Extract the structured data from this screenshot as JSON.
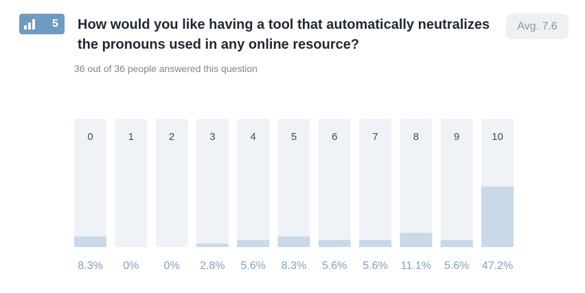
{
  "question": {
    "number": "5",
    "title": "How would you like having a tool that automatically neutralizes the pronouns used in any online resource?",
    "answered": "36 out of 36 people answered this question",
    "average": "Avg. 7.6",
    "badge_icon": "bar-chart-icon"
  },
  "colors": {
    "badge": "#6e9bc1",
    "bar_background": "#eff3f8",
    "bar_fill": "#c9d9e8",
    "percent_text": "#7f9fc0"
  },
  "chart_data": {
    "type": "bar",
    "categories": [
      "0",
      "1",
      "2",
      "3",
      "4",
      "5",
      "6",
      "7",
      "8",
      "9",
      "10"
    ],
    "values": [
      8.3,
      0,
      0,
      2.8,
      5.6,
      8.3,
      5.6,
      5.6,
      11.1,
      5.6,
      47.2
    ],
    "value_labels": [
      "8.3%",
      "0%",
      "0%",
      "2.8%",
      "5.6%",
      "8.3%",
      "5.6%",
      "5.6%",
      "11.1%",
      "5.6%",
      "47.2%"
    ],
    "title": "",
    "xlabel": "",
    "ylabel": "",
    "ylim": [
      0,
      100
    ],
    "grid": false,
    "legend": "none"
  }
}
